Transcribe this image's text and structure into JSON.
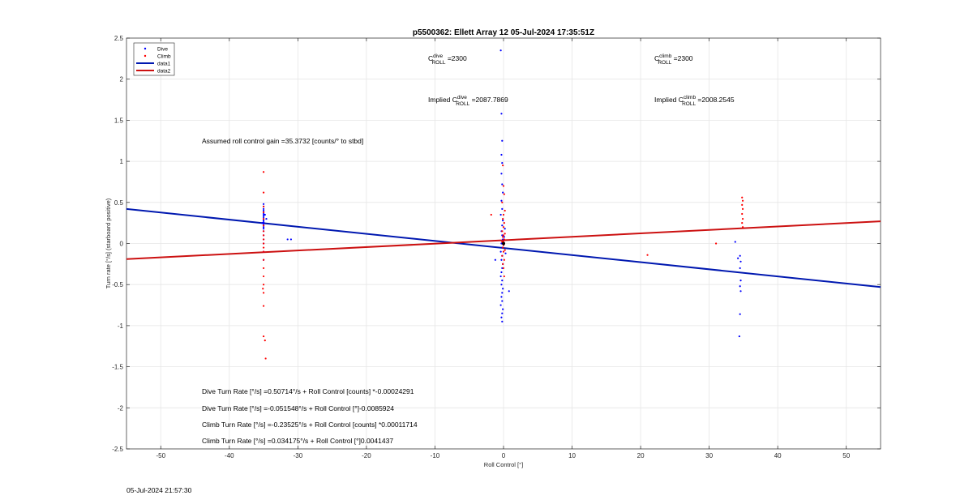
{
  "chart_data": {
    "type": "scatter",
    "title": "p5500362: Ellett Array 12 05-Jul-2024 17:35:51Z",
    "xlabel": "Roll Control [°]",
    "ylabel": "Turn rate [°/s] (starboard positive)",
    "xlim": [
      -55,
      55
    ],
    "ylim": [
      -2.5,
      2.5
    ],
    "xticks": [
      "-50",
      "-40",
      "-30",
      "-20",
      "-10",
      "0",
      "10",
      "20",
      "30",
      "40",
      "50"
    ],
    "xtick_values": [
      -50,
      -40,
      -30,
      -20,
      -10,
      0,
      10,
      20,
      30,
      40,
      50
    ],
    "yticks": [
      "2.5",
      "2",
      "1.5",
      "1",
      "0.5",
      "0",
      "-0.5",
      "-1",
      "-1.5",
      "-2",
      "-2.5"
    ],
    "ytick_values": [
      2.5,
      2,
      1.5,
      1,
      0.5,
      0,
      -0.5,
      -1,
      -1.5,
      -2,
      -2.5
    ],
    "grid": true,
    "legend_position": "top-left",
    "legend": [
      {
        "label": "Dive",
        "kind": "marker",
        "color": "#0000ff"
      },
      {
        "label": "Climb",
        "kind": "marker",
        "color": "#ff0000"
      },
      {
        "label": "data1",
        "kind": "line",
        "color": "#0018b0"
      },
      {
        "label": "data2",
        "kind": "line",
        "color": "#cc1111"
      }
    ],
    "series": [
      {
        "name": "Dive",
        "kind": "scatter",
        "color": "#0000ff",
        "x": [
          -35,
          -35,
          -35,
          -35,
          -35,
          -35,
          -35,
          -35,
          -35,
          -35,
          -35,
          -35,
          -35,
          -35,
          -35,
          -35,
          -35,
          -35,
          -35,
          -35,
          -35,
          -34.8,
          -34.6,
          -35.2,
          -31.5,
          -31,
          -0.4,
          -0.3,
          -0.2,
          -0.3,
          -0.2,
          -0.3,
          -0.2,
          -0.1,
          -0.3,
          -0.2,
          -0.4,
          -0.1,
          -0.2,
          -0.3,
          -0.2,
          -0.1,
          -0.3,
          -0.2,
          -0.4,
          -0.2,
          -0.3,
          -0.1,
          -0.2,
          -0.3,
          -0.4,
          -0.2,
          -0.3,
          -0.1,
          -0.2,
          -0.3,
          -0.2,
          -0.4,
          -0.1,
          -0.2,
          -0.3,
          -0.2,
          0,
          0.1,
          0.3,
          0.2,
          -1.2,
          0.8,
          34.5,
          34.6,
          34.5,
          34.6,
          34.5,
          34.6,
          34.5,
          34.4,
          33.8,
          34.2
        ],
        "y": [
          0.48,
          0.45,
          0.42,
          0.4,
          0.38,
          0.36,
          0.34,
          0.32,
          0.3,
          0.28,
          0.26,
          0.24,
          0.22,
          0.2,
          0.18,
          0.15,
          0.1,
          0.05,
          0,
          -0.1,
          -0.2,
          0.35,
          0.3,
          0.25,
          0.05,
          0.05,
          2.35,
          1.58,
          1.25,
          1.08,
          0.98,
          0.85,
          0.72,
          0.62,
          0.52,
          0.42,
          0.35,
          0.28,
          0.22,
          0.15,
          0.1,
          0.05,
          0,
          -0.05,
          -0.1,
          -0.15,
          -0.2,
          -0.25,
          -0.3,
          -0.35,
          -0.4,
          -0.45,
          -0.5,
          -0.55,
          -0.6,
          -0.65,
          -0.7,
          -0.75,
          -0.8,
          -0.85,
          -0.9,
          -0.95,
          -0.02,
          0.08,
          -0.12,
          0.18,
          -0.2,
          -0.58,
          -0.15,
          -0.22,
          -0.3,
          -0.45,
          -0.52,
          -0.58,
          -0.86,
          -1.13,
          0.02,
          -0.18
        ]
      },
      {
        "name": "Climb",
        "kind": "scatter",
        "color": "#ff0000",
        "x": [
          -35,
          -35,
          -35,
          -35,
          -35,
          -35,
          -35,
          -35,
          -35,
          -35,
          -35,
          -35,
          -35,
          -35,
          -35,
          -35,
          -35,
          -35,
          -35,
          -34.8,
          -34.7,
          -35.1,
          -0.1,
          0,
          0.1,
          -0.2,
          0.2,
          0,
          -0.1,
          0.1,
          0,
          -0.2,
          0.2,
          0,
          -0.1,
          0.1,
          0,
          -0.2,
          0.1,
          0,
          -0.1,
          0.2,
          0,
          -0.2,
          0.1,
          -0.1,
          0,
          0.1,
          -1.8,
          21,
          31,
          34.8,
          34.9,
          34.8,
          34.9,
          34.8,
          34.9,
          34.8,
          34.9
        ],
        "y": [
          0.87,
          0.62,
          0.45,
          0.38,
          0.3,
          0.22,
          0.15,
          0.1,
          0.05,
          0,
          -0.05,
          -0.1,
          -0.2,
          -0.3,
          -0.4,
          -0.5,
          -0.6,
          -0.76,
          -1.13,
          -1.18,
          -1.4,
          -0.55,
          0.95,
          0.7,
          0.6,
          0.5,
          0.4,
          0.35,
          0.3,
          0.25,
          0.2,
          0.15,
          0.12,
          0.1,
          0.08,
          0.05,
          0.03,
          0.02,
          0,
          -0.02,
          -0.05,
          -0.08,
          -0.1,
          -0.15,
          -0.2,
          -0.25,
          -0.3,
          -0.4,
          0.35,
          -0.14,
          0,
          0.56,
          0.52,
          0.47,
          0.42,
          0.36,
          0.3,
          0.25,
          0.2
        ]
      },
      {
        "name": "data1",
        "kind": "line",
        "color": "#0018b0",
        "x": [
          -55,
          55
        ],
        "y": [
          0.42,
          -0.53
        ]
      },
      {
        "name": "data2",
        "kind": "line",
        "color": "#cc1111",
        "x": [
          -55,
          55
        ],
        "y": [
          -0.19,
          0.27
        ]
      }
    ],
    "annotations": [
      {
        "text": "C",
        "sup": "dive",
        "sub": "ROLL",
        "after": " =2300"
      },
      {
        "text": "C",
        "sup": "climb",
        "sub": "ROLL",
        "after": " =2300"
      },
      {
        "text": "Implied C",
        "sup": "dive",
        "sub": "ROLL",
        "after": " =2087.7869"
      },
      {
        "text": "Implied C",
        "sup": "climb",
        "sub": "ROLL",
        "after": " =2008.2545"
      },
      {
        "text": "Assumed roll control gain =35.3732 [counts/° to stbd]"
      },
      {
        "text": "Dive Turn Rate [°/s] =0.50714°/s + Roll Control [counts] *-0.00024291"
      },
      {
        "text": "Dive Turn Rate [°/s] =-0.051548°/s + Roll Control [°]-0.0085924"
      },
      {
        "text": "Climb Turn Rate [°/s] =-0.23525°/s + Roll Control [counts] *0.00011714"
      },
      {
        "text": "Climb Turn Rate [°/s] =0.034175°/s + Roll Control [°]0.0041437"
      }
    ]
  },
  "timestamp": "05-Jul-2024 21:57:30"
}
